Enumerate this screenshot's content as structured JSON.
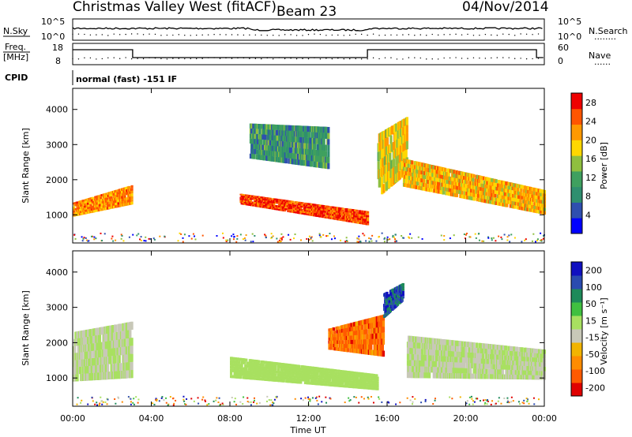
{
  "header": {
    "title": "Christmas Valley West (fitACF)",
    "beam": "Beam 23",
    "date": "04/Nov/2014"
  },
  "strip_nsky": {
    "left_label": "N.Sky",
    "right_label": "N.Search",
    "right_dots": "........",
    "left_ticks": [
      "10^5",
      "10^0"
    ],
    "right_ticks": [
      "10^5",
      "10^0"
    ]
  },
  "strip_freq": {
    "left_label_line1": "Freq.",
    "left_label_line2": "[MHz]",
    "right_label": "Nave",
    "right_dots": "......",
    "left_ticks": [
      "18",
      "8"
    ],
    "right_ticks": [
      "60",
      "0"
    ]
  },
  "cpid": {
    "label": "CPID",
    "text": "normal (fast) -151 IF"
  },
  "colors": {
    "power_scale": [
      "#0000ff",
      "#2f4faf",
      "#2f8f6f",
      "#3fa05f",
      "#8fbf3f",
      "#ffd700",
      "#ff9900",
      "#ff5500",
      "#ee0000"
    ],
    "velocity_scale": [
      "#e00000",
      "#ff5a00",
      "#ff8c00",
      "#f2b400",
      "#c8c8b8",
      "#a8e060",
      "#40c040",
      "#1e8a5a",
      "#2a4bb0",
      "#1010c0"
    ]
  },
  "chart_data": [
    {
      "type": "heatmap",
      "name": "power",
      "ylabel": "Slant Range [km]",
      "y_ticks": [
        "1000",
        "2000",
        "3000",
        "4000"
      ],
      "ylim": [
        200,
        4600
      ],
      "colorbar_label": "Power [dB]",
      "colorbar_ticks": [
        "4",
        "8",
        "12",
        "16",
        "20",
        "24",
        "28"
      ],
      "colorbar_range": [
        0,
        30
      ],
      "bands": [
        {
          "x": [
            0.0,
            3.0
          ],
          "y_low": [
            950,
            1300
          ],
          "y_high": [
            1350,
            1850
          ],
          "level": 22
        },
        {
          "x": [
            8.5,
            15.0
          ],
          "y_low": [
            1300,
            700
          ],
          "y_high": [
            1600,
            1100
          ],
          "level": 26
        },
        {
          "x": [
            15.5,
            17.0
          ],
          "y_low": [
            1500,
            2200
          ],
          "y_high": [
            3300,
            3800
          ],
          "level": 18
        },
        {
          "x": [
            16.8,
            24.0
          ],
          "y_low": [
            1800,
            1000
          ],
          "y_high": [
            2600,
            1700
          ],
          "level": 20
        },
        {
          "x": [
            9.0,
            13.0
          ],
          "y_low": [
            2600,
            2300
          ],
          "y_high": [
            3600,
            3500
          ],
          "level": 10
        }
      ]
    },
    {
      "type": "heatmap",
      "name": "velocity",
      "ylabel": "Slant Range [km]",
      "y_ticks": [
        "1000",
        "2000",
        "3000",
        "4000"
      ],
      "ylim": [
        200,
        4600
      ],
      "colorbar_label": "Velocity [m s⁻¹]",
      "colorbar_ticks": [
        "200",
        "100",
        "50",
        "15",
        "-15",
        "-50",
        "-100",
        "-200"
      ],
      "colorbar_range": [
        -250,
        250
      ],
      "x_ticks": [
        "00:00",
        "04:00",
        "08:00",
        "12:00",
        "16:00",
        "20:00",
        "00:00"
      ],
      "xlabel": "Time UT",
      "bands": [
        {
          "x": [
            0.0,
            3.0
          ],
          "y_low": [
            900,
            1000
          ],
          "y_high": [
            2300,
            2600
          ],
          "level": 0
        },
        {
          "x": [
            8.0,
            15.5
          ],
          "y_low": [
            1000,
            650
          ],
          "y_high": [
            1600,
            1100
          ],
          "level": 40
        },
        {
          "x": [
            13.0,
            15.8
          ],
          "y_low": [
            1800,
            1600
          ],
          "y_high": [
            2400,
            2800
          ],
          "level": -150
        },
        {
          "x": [
            15.8,
            16.8
          ],
          "y_low": [
            2700,
            3200
          ],
          "y_high": [
            3400,
            3700
          ],
          "level": 180
        },
        {
          "x": [
            17.0,
            24.0
          ],
          "y_low": [
            1000,
            950
          ],
          "y_high": [
            2200,
            1800
          ],
          "level": 0
        }
      ]
    }
  ]
}
